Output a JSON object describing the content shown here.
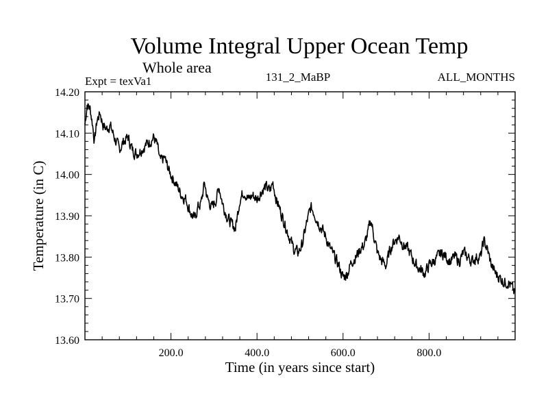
{
  "chart_data": {
    "type": "line",
    "title": "Volume Integral Upper Ocean Temp",
    "subtitle": "Whole area",
    "experiment_label": "Expt = texVa1",
    "run_label": "131_2_MaBP",
    "months_label": "ALL_MONTHS",
    "xlabel": "Time (in years since start)",
    "ylabel": "Temperature (in C)",
    "xlim": [
      0,
      1000
    ],
    "ylim": [
      13.6,
      14.2
    ],
    "x_ticks": [
      200,
      400,
      600,
      800
    ],
    "x_tick_labels": [
      "200.0",
      "400.0",
      "600.0",
      "800.0"
    ],
    "y_ticks": [
      13.6,
      13.7,
      13.8,
      13.9,
      14.0,
      14.1,
      14.2
    ],
    "y_tick_labels": [
      "13.60",
      "13.70",
      "13.80",
      "13.90",
      "14.00",
      "14.10",
      "14.20"
    ],
    "series": [
      {
        "name": "Temperature",
        "color": "#000000",
        "anchors": [
          [
            0,
            14.12
          ],
          [
            5,
            14.17
          ],
          [
            12,
            14.16
          ],
          [
            18,
            14.12
          ],
          [
            22,
            14.08
          ],
          [
            28,
            14.13
          ],
          [
            35,
            14.15
          ],
          [
            42,
            14.12
          ],
          [
            50,
            14.11
          ],
          [
            58,
            14.12
          ],
          [
            65,
            14.1
          ],
          [
            72,
            14.08
          ],
          [
            80,
            14.06
          ],
          [
            90,
            14.08
          ],
          [
            100,
            14.09
          ],
          [
            110,
            14.06
          ],
          [
            120,
            14.05
          ],
          [
            130,
            14.06
          ],
          [
            140,
            14.07
          ],
          [
            150,
            14.08
          ],
          [
            160,
            14.09
          ],
          [
            168,
            14.07
          ],
          [
            175,
            14.03
          ],
          [
            185,
            14.04
          ],
          [
            195,
            14.01
          ],
          [
            205,
            13.99
          ],
          [
            215,
            13.97
          ],
          [
            225,
            13.95
          ],
          [
            235,
            13.94
          ],
          [
            245,
            13.91
          ],
          [
            255,
            13.89
          ],
          [
            262,
            13.92
          ],
          [
            270,
            13.93
          ],
          [
            278,
            13.98
          ],
          [
            285,
            13.94
          ],
          [
            295,
            13.92
          ],
          [
            305,
            13.94
          ],
          [
            312,
            13.97
          ],
          [
            320,
            13.93
          ],
          [
            330,
            13.9
          ],
          [
            340,
            13.88
          ],
          [
            350,
            13.87
          ],
          [
            360,
            13.94
          ],
          [
            370,
            13.96
          ],
          [
            380,
            13.94
          ],
          [
            390,
            13.95
          ],
          [
            400,
            13.94
          ],
          [
            410,
            13.96
          ],
          [
            420,
            13.97
          ],
          [
            430,
            13.96
          ],
          [
            437,
            13.98
          ],
          [
            445,
            13.94
          ],
          [
            455,
            13.91
          ],
          [
            465,
            13.88
          ],
          [
            475,
            13.85
          ],
          [
            485,
            13.82
          ],
          [
            495,
            13.81
          ],
          [
            505,
            13.83
          ],
          [
            515,
            13.88
          ],
          [
            525,
            13.92
          ],
          [
            532,
            13.91
          ],
          [
            540,
            13.89
          ],
          [
            550,
            13.87
          ],
          [
            560,
            13.85
          ],
          [
            570,
            13.82
          ],
          [
            580,
            13.8
          ],
          [
            590,
            13.78
          ],
          [
            600,
            13.75
          ],
          [
            610,
            13.76
          ],
          [
            620,
            13.79
          ],
          [
            630,
            13.8
          ],
          [
            640,
            13.82
          ],
          [
            650,
            13.83
          ],
          [
            658,
            13.86
          ],
          [
            665,
            13.89
          ],
          [
            672,
            13.85
          ],
          [
            680,
            13.81
          ],
          [
            690,
            13.79
          ],
          [
            700,
            13.78
          ],
          [
            710,
            13.82
          ],
          [
            720,
            13.84
          ],
          [
            730,
            13.85
          ],
          [
            740,
            13.83
          ],
          [
            750,
            13.82
          ],
          [
            760,
            13.8
          ],
          [
            770,
            13.78
          ],
          [
            780,
            13.77
          ],
          [
            790,
            13.76
          ],
          [
            800,
            13.78
          ],
          [
            810,
            13.79
          ],
          [
            820,
            13.8
          ],
          [
            830,
            13.81
          ],
          [
            840,
            13.8
          ],
          [
            850,
            13.79
          ],
          [
            860,
            13.8
          ],
          [
            870,
            13.79
          ],
          [
            880,
            13.81
          ],
          [
            890,
            13.8
          ],
          [
            900,
            13.79
          ],
          [
            910,
            13.8
          ],
          [
            920,
            13.8
          ],
          [
            927,
            13.84
          ],
          [
            935,
            13.82
          ],
          [
            945,
            13.78
          ],
          [
            955,
            13.76
          ],
          [
            965,
            13.75
          ],
          [
            975,
            13.74
          ],
          [
            985,
            13.74
          ],
          [
            995,
            13.72
          ],
          [
            1000,
            13.71
          ]
        ],
        "noise_amplitude": 0.012,
        "sample_step": 1,
        "seed": 7
      }
    ]
  }
}
